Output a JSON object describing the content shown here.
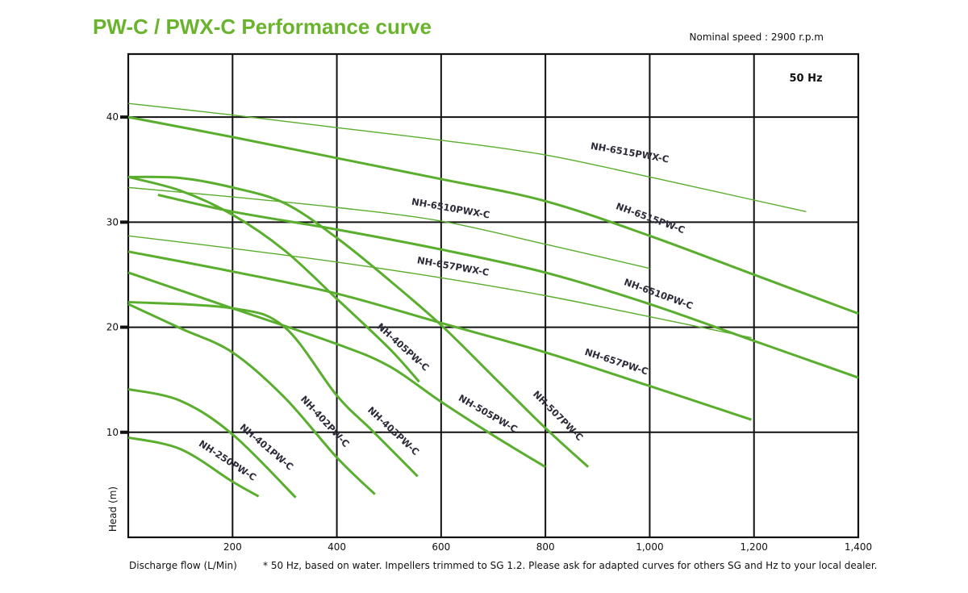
{
  "chart_data": {
    "type": "line",
    "title": "PW-C / PWX-C Performance curve",
    "subtitle": "Nominal speed : 2900 r.p.m",
    "annotation": "50 Hz",
    "xlabel": "Discharge flow (L/Min)",
    "ylabel": "Head (m)",
    "note": "* 50 Hz, based on water. Impellers trimmed to SG 1.2. Please ask for adapted curves for others SG and Hz to your local dealer.",
    "xlim": [
      0,
      1400
    ],
    "ylim": [
      0,
      46
    ],
    "xticks": [
      200,
      400,
      600,
      800,
      1000,
      1200,
      1400
    ],
    "xtick_labels": [
      "200",
      "400",
      "600",
      "800",
      "1,000",
      "1,200",
      "1,400"
    ],
    "yticks": [
      10,
      20,
      30,
      40
    ],
    "ytick_labels": [
      "10",
      "20",
      "30",
      "40"
    ],
    "grid": true,
    "line_color": "#5aae2e",
    "title_color": "#6ab42d",
    "series": [
      {
        "name": "NH-6515PWX-C",
        "style": "thin",
        "points": [
          [
            0,
            41.3
          ],
          [
            200,
            40.2
          ],
          [
            400,
            39.0
          ],
          [
            600,
            37.8
          ],
          [
            800,
            36.4
          ],
          [
            1000,
            34.3
          ],
          [
            1200,
            32.1
          ],
          [
            1300,
            31.0
          ]
        ]
      },
      {
        "name": "NH-6515PW-C",
        "style": "thick",
        "points": [
          [
            0,
            40.0
          ],
          [
            200,
            38.1
          ],
          [
            400,
            36.1
          ],
          [
            600,
            34.1
          ],
          [
            800,
            32.0
          ],
          [
            1000,
            28.7
          ],
          [
            1200,
            25.0
          ],
          [
            1400,
            21.3
          ]
        ]
      },
      {
        "name": "NH-6510PWX-C",
        "style": "thin",
        "points": [
          [
            0,
            33.3
          ],
          [
            200,
            32.4
          ],
          [
            400,
            31.4
          ],
          [
            600,
            30.1
          ],
          [
            800,
            27.9
          ],
          [
            1000,
            25.6
          ]
        ]
      },
      {
        "name": "NH-6510PW-C",
        "style": "thick",
        "points": [
          [
            57,
            32.6
          ],
          [
            200,
            31.0
          ],
          [
            400,
            29.3
          ],
          [
            600,
            27.4
          ],
          [
            800,
            25.2
          ],
          [
            1000,
            22.2
          ],
          [
            1200,
            18.7
          ],
          [
            1400,
            15.2
          ]
        ]
      },
      {
        "name": "NH-657PWX-C",
        "style": "thin",
        "points": [
          [
            0,
            28.7
          ],
          [
            200,
            27.5
          ],
          [
            400,
            26.2
          ],
          [
            600,
            24.7
          ],
          [
            800,
            23.0
          ],
          [
            1000,
            21.0
          ],
          [
            1195,
            19.0
          ]
        ]
      },
      {
        "name": "NH-657PW-C",
        "style": "thick",
        "points": [
          [
            0,
            27.2
          ],
          [
            200,
            25.3
          ],
          [
            400,
            23.2
          ],
          [
            600,
            20.4
          ],
          [
            800,
            17.6
          ],
          [
            1000,
            14.4
          ],
          [
            1195,
            11.2
          ]
        ]
      },
      {
        "name": "NH-405PW-C",
        "style": "thick",
        "points": [
          [
            0,
            34.3
          ],
          [
            100,
            33.0
          ],
          [
            200,
            30.7
          ],
          [
            300,
            27.3
          ],
          [
            400,
            22.7
          ],
          [
            500,
            18.0
          ],
          [
            558,
            14.8
          ]
        ]
      },
      {
        "name": "NH-507PW-C",
        "style": "thick",
        "points": [
          [
            0,
            34.3
          ],
          [
            100,
            34.2
          ],
          [
            200,
            33.3
          ],
          [
            300,
            31.8
          ],
          [
            400,
            28.5
          ],
          [
            500,
            24.5
          ],
          [
            600,
            20.2
          ],
          [
            700,
            15.3
          ],
          [
            800,
            10.4
          ],
          [
            882,
            6.7
          ]
        ]
      },
      {
        "name": "NH-505PW-C",
        "style": "thick",
        "points": [
          [
            0,
            25.2
          ],
          [
            200,
            21.8
          ],
          [
            400,
            18.4
          ],
          [
            500,
            16.3
          ],
          [
            600,
            12.9
          ],
          [
            700,
            9.7
          ],
          [
            800,
            6.7
          ]
        ]
      },
      {
        "name": "NH-403PW-C",
        "style": "thick",
        "points": [
          [
            0,
            22.4
          ],
          [
            200,
            21.8
          ],
          [
            300,
            20.0
          ],
          [
            400,
            13.5
          ],
          [
            467,
            10.2
          ],
          [
            555,
            5.8
          ]
        ]
      },
      {
        "name": "NH-402PW-C",
        "style": "thick",
        "points": [
          [
            0,
            22.2
          ],
          [
            100,
            19.9
          ],
          [
            200,
            17.6
          ],
          [
            300,
            13.3
          ],
          [
            400,
            7.6
          ],
          [
            473,
            4.1
          ]
        ]
      },
      {
        "name": "NH-401PW-C",
        "style": "thick",
        "points": [
          [
            0,
            14.1
          ],
          [
            100,
            13.0
          ],
          [
            200,
            9.8
          ],
          [
            321,
            3.8
          ]
        ]
      },
      {
        "name": "NH-250PW-C",
        "style": "thick",
        "points": [
          [
            0,
            9.5
          ],
          [
            100,
            8.4
          ],
          [
            200,
            5.3
          ],
          [
            250,
            3.9
          ]
        ]
      }
    ]
  }
}
